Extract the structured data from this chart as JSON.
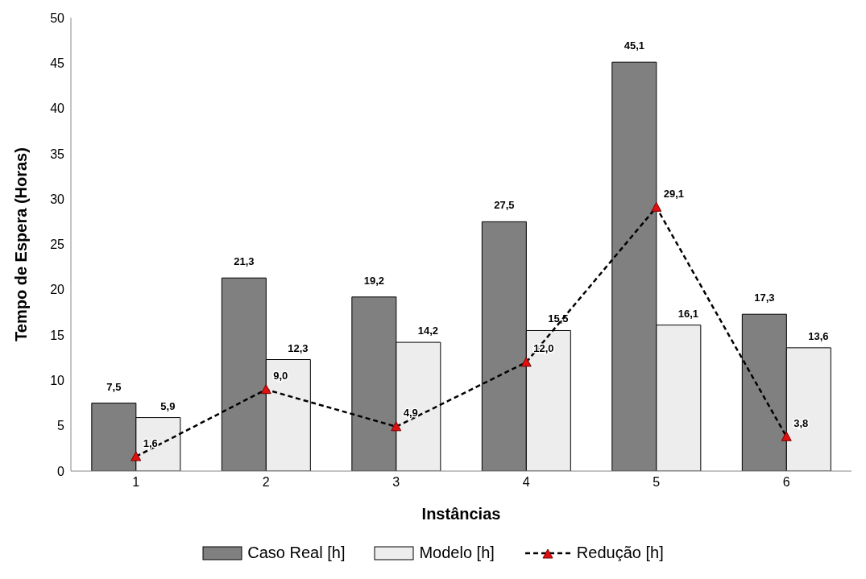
{
  "chart_data": {
    "type": "bar",
    "xlabel": "Instâncias",
    "ylabel": "Tempo de Espera (Horas)",
    "categories": [
      "1",
      "2",
      "3",
      "4",
      "5",
      "6"
    ],
    "series": [
      {
        "name": "Caso Real [h]",
        "color": "#808080",
        "values": [
          7.5,
          21.3,
          19.2,
          27.5,
          45.1,
          17.3
        ],
        "value_labels": [
          "7,5",
          "21,3",
          "19,2",
          "27,5",
          "45,1",
          "17,3"
        ]
      },
      {
        "name": "Modelo [h]",
        "color": "#ededed",
        "values": [
          5.9,
          12.3,
          14.2,
          15.5,
          16.1,
          13.6
        ],
        "value_labels": [
          "5,9",
          "12,3",
          "14,2",
          "15,5",
          "16,1",
          "13,6"
        ]
      },
      {
        "name": "Redução [h]",
        "type": "line",
        "color": "#000000",
        "marker": "triangle",
        "line_style": "dashed",
        "values": [
          1.6,
          9.0,
          4.9,
          12.0,
          29.1,
          3.8
        ],
        "value_labels": [
          "1,6",
          "9,0",
          "4,9",
          "12,0",
          "29,1",
          "3,8"
        ]
      }
    ],
    "ylim": [
      0,
      50
    ],
    "yticks": [
      0,
      5,
      10,
      15,
      20,
      25,
      30,
      35,
      40,
      45,
      50
    ],
    "grid": false,
    "legend": "bottom"
  }
}
